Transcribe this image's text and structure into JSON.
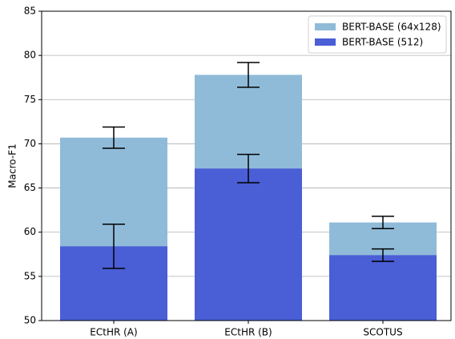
{
  "chart_data": {
    "type": "bar",
    "overlap": true,
    "ylabel": "Macro-F1",
    "categories": [
      "ECtHR (A)",
      "ECtHR (B)",
      "SCOTUS"
    ],
    "series": [
      {
        "name": "BERT-BASE (64x128)",
        "color": "#8fbbd9",
        "values": [
          70.7,
          77.8,
          61.1
        ],
        "errors": [
          1.2,
          1.4,
          0.7
        ]
      },
      {
        "name": "BERT-BASE (512)",
        "color": "#4a5ed6",
        "values": [
          58.4,
          67.2,
          57.4
        ],
        "errors": [
          2.5,
          1.6,
          0.7
        ]
      }
    ],
    "ylim": [
      50,
      85
    ],
    "yticks": [
      50,
      55,
      60,
      65,
      70,
      75,
      80,
      85
    ],
    "grid": true,
    "legend": "upper right"
  }
}
